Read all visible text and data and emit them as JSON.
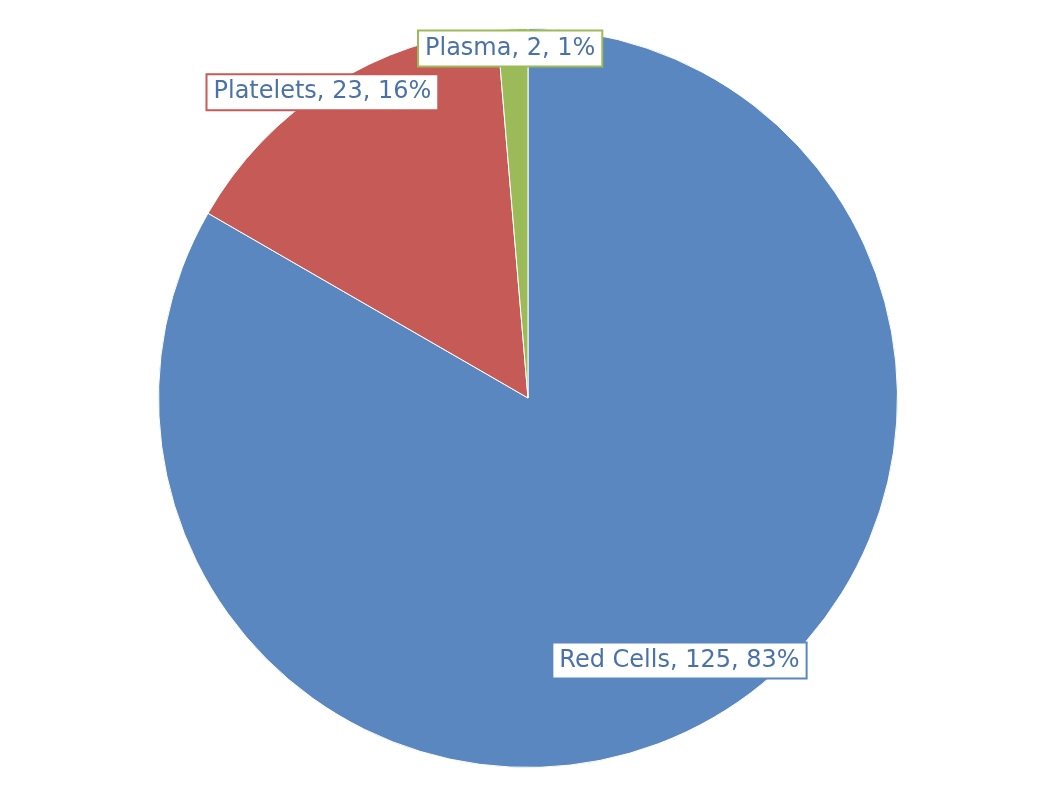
{
  "chart_data": {
    "type": "pie",
    "categories": [
      "Red Cells",
      "Platelets",
      "Plasma"
    ],
    "values": [
      125,
      23,
      2
    ],
    "colors": [
      "#5b87c1",
      "#c65a56",
      "#9bbb59"
    ],
    "value_labels": [
      "125, 83%",
      "23, 16%",
      "2, 1%"
    ],
    "legend": false
  }
}
